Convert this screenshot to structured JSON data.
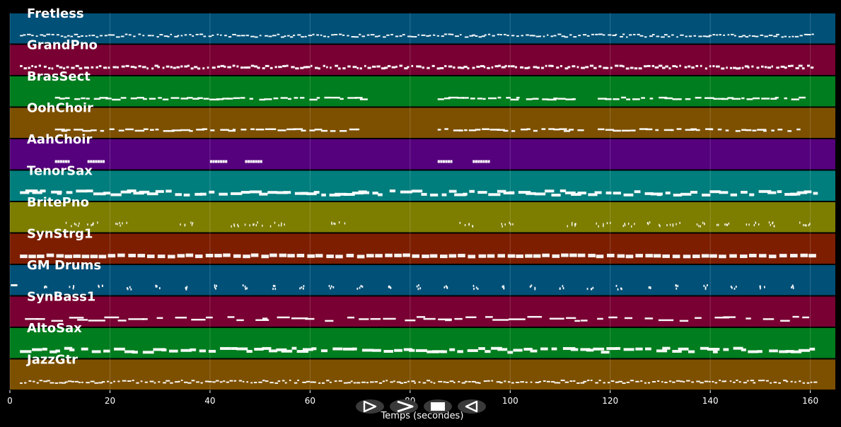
{
  "timeline": {
    "x_min": 0,
    "x_max": 165,
    "ticks": [
      "0",
      "20",
      "40",
      "60",
      "80",
      "100",
      "120",
      "140",
      "160"
    ],
    "tick_values": [
      0,
      20,
      40,
      60,
      80,
      100,
      120,
      140,
      160
    ],
    "axis_title": "Temps (secondes)",
    "grid": true
  },
  "tracks": [
    {
      "name": "Fretless",
      "color": "#005078",
      "pattern": "fine"
    },
    {
      "name": "GrandPno",
      "color": "#780032",
      "pattern": "dense"
    },
    {
      "name": "BrasSect",
      "color": "#007d1e",
      "pattern": "brass"
    },
    {
      "name": "OohChoir",
      "color": "#7d5000",
      "pattern": "brass"
    },
    {
      "name": "AahChoir",
      "color": "#55007d",
      "pattern": "sparse"
    },
    {
      "name": "TenorSax",
      "color": "#007d7d",
      "pattern": "bold"
    },
    {
      "name": "BritePno",
      "color": "#7d7d00",
      "pattern": "scatter"
    },
    {
      "name": "SynStrg1",
      "color": "#7d1e00",
      "pattern": "sustain"
    },
    {
      "name": "GM Drums",
      "color": "#005078",
      "pattern": "drums"
    },
    {
      "name": "SynBass1",
      "color": "#780032",
      "pattern": "bass"
    },
    {
      "name": "AltoSax",
      "color": "#007d1e",
      "pattern": "bold"
    },
    {
      "name": "JazzGtr",
      "color": "#7d5000",
      "pattern": "fine"
    }
  ],
  "controls": [
    {
      "id": "play",
      "icon": "play-icon",
      "interactable": true
    },
    {
      "id": "forward",
      "icon": "fast-forward-icon",
      "interactable": true
    },
    {
      "id": "stop",
      "icon": "stop-icon",
      "interactable": true
    },
    {
      "id": "rewind",
      "icon": "rewind-icon",
      "interactable": true
    }
  ]
}
